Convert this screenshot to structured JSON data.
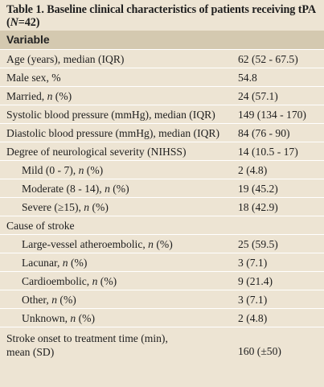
{
  "caption": {
    "prefix": "Table 1. Baseline clinical characteristics of patients receiving tPA (",
    "n_italic": "N",
    "suffix": "=42)"
  },
  "header": "Variable",
  "rows": [
    {
      "label": "Age (years), median (IQR)",
      "value": "62 (52 - 67.5)"
    },
    {
      "label": "Male sex, %",
      "value": "54.8"
    },
    {
      "label": "Married, ",
      "italic": "n",
      "label_end": " (%)",
      "value": "24 (57.1)"
    },
    {
      "label": "Systolic blood pressure (mmHg), median (IQR)",
      "value": "149 (134 - 170)"
    },
    {
      "label": "Diastolic blood pressure (mmHg), median (IQR)",
      "value": "84 (76 - 90)"
    },
    {
      "label": "Degree of neurological severity (NIHSS)",
      "value": "14 (10.5 - 17)"
    },
    {
      "label": "Mild (0 - 7), ",
      "italic": "n",
      "label_end": " (%)",
      "value": "2 (4.8)"
    },
    {
      "label": "Moderate (8 - 14), ",
      "italic": "n",
      "label_end": " (%)",
      "value": "19 (45.2)"
    },
    {
      "label": "Severe (≥15), ",
      "italic": "n",
      "label_end": " (%)",
      "value": "18 (42.9)"
    },
    {
      "label": "Cause of stroke",
      "value": ""
    },
    {
      "label": "Large-vessel atheroembolic, ",
      "italic": "n",
      "label_end": " (%)",
      "value": "25 (59.5)"
    },
    {
      "label": "Lacunar, ",
      "italic": "n",
      "label_end": " (%)",
      "value": "3 (7.1)"
    },
    {
      "label": "Cardioembolic, ",
      "italic": "n",
      "label_end": " (%)",
      "value": "9 (21.4)"
    },
    {
      "label": "Other, ",
      "italic": "n",
      "label_end": " (%)",
      "value": "3 (7.1)"
    },
    {
      "label": "Unknown, ",
      "italic": "n",
      "label_end": " (%)",
      "value": "2 (4.8)"
    },
    {
      "label_line1": "Stroke onset to treatment time (min),",
      "label_line2": "mean (SD)",
      "value": "160 (±50)"
    }
  ]
}
